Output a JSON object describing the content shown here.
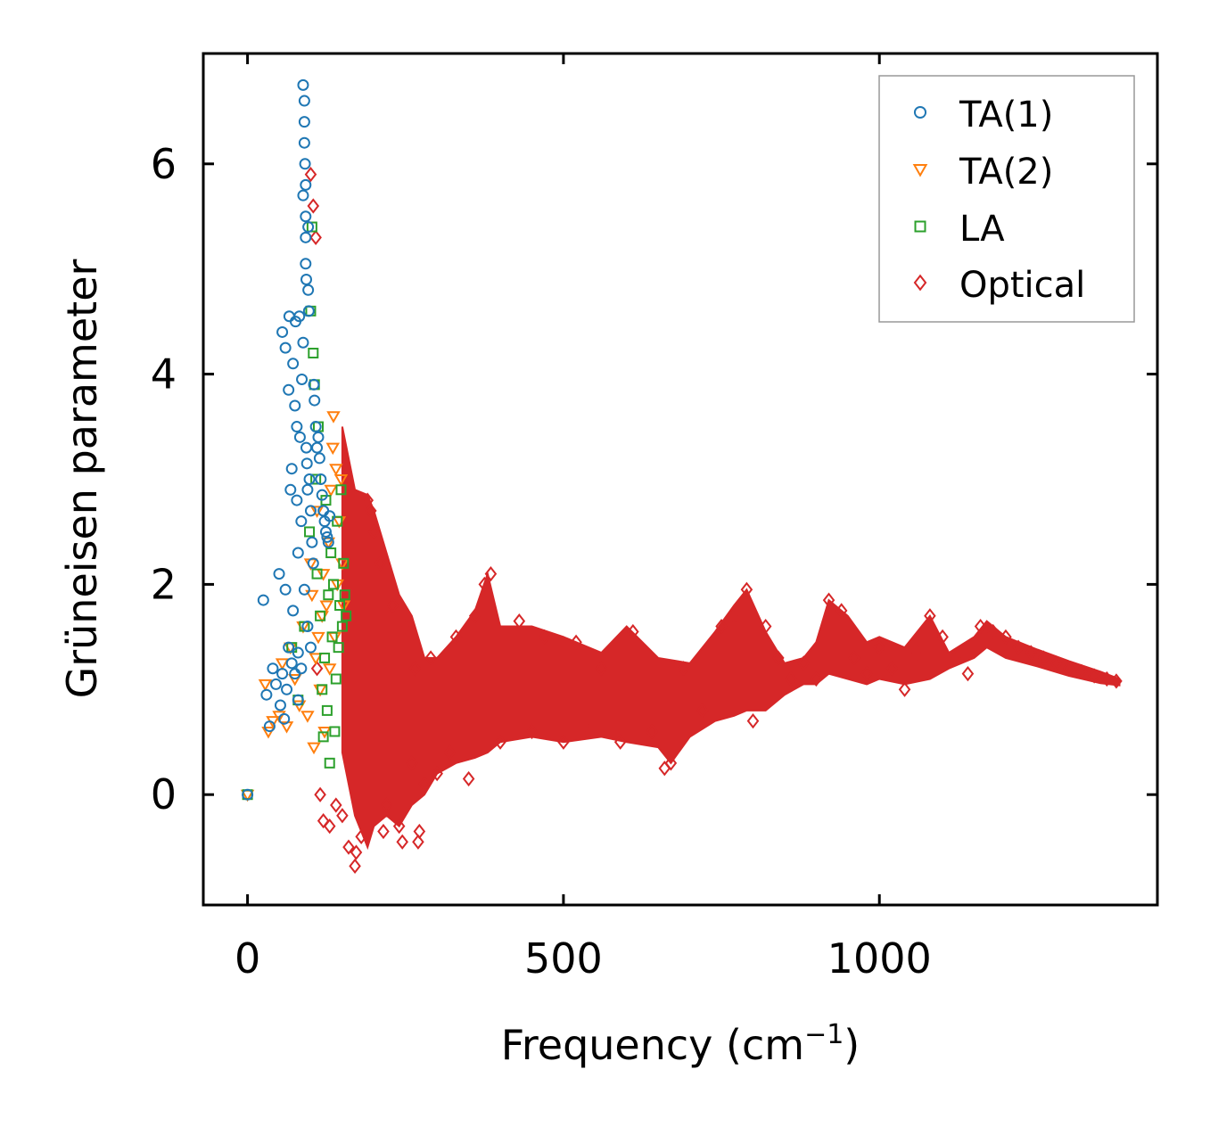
{
  "chart_data": {
    "type": "scatter",
    "title": "",
    "xlabel": "Frequency (cm",
    "xlabel_sup": "−1",
    "xlabel_close": ")",
    "ylabel": "Grüneisen parameter",
    "xlim": [
      -70,
      1440
    ],
    "ylim": [
      -1.05,
      7.05
    ],
    "xticks": [
      0,
      500,
      1000
    ],
    "yticks": [
      0,
      2,
      4,
      6
    ],
    "legend_position": "top-right",
    "series": [
      {
        "name": "TA(1)",
        "marker": "circle",
        "color": "#1f77b4",
        "points": [
          [
            0,
            0
          ],
          [
            25,
            1.85
          ],
          [
            30,
            0.95
          ],
          [
            35,
            0.65
          ],
          [
            40,
            1.2
          ],
          [
            45,
            1.05
          ],
          [
            50,
            2.1
          ],
          [
            52,
            0.85
          ],
          [
            55,
            1.15
          ],
          [
            55,
            4.4
          ],
          [
            58,
            0.72
          ],
          [
            60,
            1.95
          ],
          [
            60,
            4.25
          ],
          [
            62,
            1.0
          ],
          [
            65,
            1.4
          ],
          [
            65,
            3.85
          ],
          [
            66,
            4.55
          ],
          [
            68,
            2.9
          ],
          [
            70,
            1.25
          ],
          [
            70,
            3.1
          ],
          [
            72,
            4.1
          ],
          [
            72,
            1.75
          ],
          [
            75,
            1.15
          ],
          [
            75,
            3.7
          ],
          [
            76,
            4.5
          ],
          [
            78,
            2.8
          ],
          [
            78,
            3.5
          ],
          [
            80,
            0.9
          ],
          [
            80,
            1.35
          ],
          [
            80,
            2.3
          ],
          [
            82,
            4.55
          ],
          [
            83,
            3.4
          ],
          [
            85,
            2.6
          ],
          [
            85,
            1.2
          ],
          [
            86,
            3.95
          ],
          [
            88,
            5.7
          ],
          [
            88,
            4.3
          ],
          [
            88,
            6.75
          ],
          [
            90,
            6.6
          ],
          [
            90,
            6.4
          ],
          [
            90,
            6.2
          ],
          [
            90,
            1.95
          ],
          [
            91,
            6.0
          ],
          [
            92,
            5.8
          ],
          [
            92,
            5.5
          ],
          [
            92,
            5.3
          ],
          [
            92,
            5.05
          ],
          [
            93,
            4.9
          ],
          [
            93,
            3.3
          ],
          [
            94,
            3.15
          ],
          [
            95,
            2.9
          ],
          [
            95,
            1.6
          ],
          [
            96,
            5.4
          ],
          [
            96,
            4.8
          ],
          [
            97,
            4.6
          ],
          [
            98,
            3.0
          ],
          [
            100,
            2.7
          ],
          [
            100,
            1.4
          ],
          [
            102,
            2.4
          ],
          [
            104,
            2.2
          ],
          [
            105,
            3.9
          ],
          [
            106,
            3.75
          ],
          [
            108,
            3.5
          ],
          [
            110,
            3.3
          ],
          [
            112,
            3.4
          ],
          [
            114,
            3.2
          ],
          [
            116,
            3.0
          ],
          [
            118,
            2.85
          ],
          [
            120,
            2.7
          ],
          [
            122,
            2.6
          ],
          [
            124,
            2.5
          ],
          [
            126,
            2.45
          ],
          [
            128,
            2.4
          ],
          [
            130,
            2.65
          ]
        ]
      },
      {
        "name": "TA(2)",
        "marker": "triangle",
        "color": "#ff7f0e",
        "points": [
          [
            0,
            0
          ],
          [
            28,
            1.05
          ],
          [
            33,
            0.6
          ],
          [
            40,
            0.7
          ],
          [
            50,
            0.75
          ],
          [
            55,
            1.25
          ],
          [
            62,
            0.65
          ],
          [
            68,
            1.4
          ],
          [
            75,
            1.1
          ],
          [
            82,
            0.85
          ],
          [
            88,
            1.6
          ],
          [
            95,
            0.75
          ],
          [
            100,
            2.2
          ],
          [
            102,
            1.9
          ],
          [
            105,
            0.45
          ],
          [
            108,
            1.3
          ],
          [
            110,
            2.7
          ],
          [
            112,
            1.5
          ],
          [
            115,
            1.0
          ],
          [
            118,
            1.7
          ],
          [
            120,
            2.1
          ],
          [
            122,
            0.6
          ],
          [
            125,
            1.8
          ],
          [
            128,
            2.4
          ],
          [
            130,
            1.2
          ],
          [
            132,
            2.9
          ],
          [
            135,
            3.3
          ],
          [
            136,
            3.6
          ],
          [
            138,
            1.5
          ],
          [
            140,
            3.1
          ],
          [
            142,
            2.0
          ],
          [
            145,
            2.6
          ],
          [
            148,
            3.0
          ],
          [
            150,
            2.2
          ],
          [
            152,
            1.8
          ]
        ]
      },
      {
        "name": "LA",
        "marker": "square",
        "color": "#2ca02c",
        "points": [
          [
            0,
            0
          ],
          [
            70,
            1.4
          ],
          [
            80,
            0.9
          ],
          [
            90,
            1.6
          ],
          [
            98,
            2.5
          ],
          [
            100,
            4.6
          ],
          [
            102,
            5.4
          ],
          [
            104,
            4.2
          ],
          [
            106,
            3.9
          ],
          [
            108,
            3.0
          ],
          [
            110,
            2.1
          ],
          [
            112,
            3.5
          ],
          [
            115,
            1.7
          ],
          [
            118,
            1.0
          ],
          [
            120,
            0.55
          ],
          [
            122,
            1.3
          ],
          [
            124,
            2.8
          ],
          [
            126,
            0.8
          ],
          [
            128,
            1.9
          ],
          [
            130,
            0.3
          ],
          [
            132,
            2.3
          ],
          [
            134,
            1.5
          ],
          [
            136,
            2.0
          ],
          [
            138,
            0.6
          ],
          [
            140,
            1.1
          ],
          [
            142,
            2.6
          ],
          [
            144,
            1.4
          ],
          [
            146,
            1.8
          ],
          [
            148,
            2.9
          ],
          [
            150,
            1.6
          ],
          [
            152,
            2.2
          ],
          [
            154,
            1.9
          ],
          [
            156,
            1.7
          ]
        ]
      },
      {
        "name": "Optical",
        "marker": "diamond",
        "color": "#d62728",
        "points": [
          [
            100,
            5.9
          ],
          [
            104,
            5.6
          ],
          [
            108,
            5.3
          ],
          [
            110,
            1.2
          ],
          [
            115,
            0.0
          ],
          [
            120,
            -0.25
          ],
          [
            130,
            -0.3
          ],
          [
            140,
            -0.1
          ],
          [
            150,
            -0.2
          ],
          [
            160,
            -0.5
          ],
          [
            170,
            -0.68
          ],
          [
            172,
            -0.55
          ],
          [
            180,
            -0.4
          ],
          [
            190,
            2.8
          ],
          [
            195,
            2.7
          ],
          [
            200,
            2.5
          ],
          [
            210,
            2.2
          ],
          [
            215,
            -0.35
          ],
          [
            220,
            -0.1
          ],
          [
            230,
            1.8
          ],
          [
            240,
            -0.3
          ],
          [
            245,
            -0.45
          ],
          [
            250,
            1.6
          ],
          [
            260,
            0.3
          ],
          [
            265,
            1.2
          ],
          [
            270,
            -0.45
          ],
          [
            272,
            -0.35
          ],
          [
            280,
            0.1
          ],
          [
            290,
            1.3
          ],
          [
            300,
            0.2
          ],
          [
            320,
            0.4
          ],
          [
            330,
            1.5
          ],
          [
            350,
            0.15
          ],
          [
            360,
            1.7
          ],
          [
            375,
            2.0
          ],
          [
            385,
            2.1
          ],
          [
            400,
            0.5
          ],
          [
            430,
            1.65
          ],
          [
            450,
            0.6
          ],
          [
            470,
            1.5
          ],
          [
            500,
            0.5
          ],
          [
            520,
            1.45
          ],
          [
            540,
            0.6
          ],
          [
            560,
            1.2
          ],
          [
            590,
            0.5
          ],
          [
            610,
            1.55
          ],
          [
            640,
            0.6
          ],
          [
            660,
            0.25
          ],
          [
            670,
            0.3
          ],
          [
            690,
            1.2
          ],
          [
            720,
            0.8
          ],
          [
            750,
            1.6
          ],
          [
            770,
            1.7
          ],
          [
            790,
            1.95
          ],
          [
            800,
            0.7
          ],
          [
            820,
            1.6
          ],
          [
            840,
            1.3
          ],
          [
            860,
            1.1
          ],
          [
            880,
            1.25
          ],
          [
            900,
            1.1
          ],
          [
            920,
            1.85
          ],
          [
            940,
            1.75
          ],
          [
            960,
            1.3
          ],
          [
            980,
            1.15
          ],
          [
            1000,
            1.4
          ],
          [
            1020,
            1.2
          ],
          [
            1040,
            1.0
          ],
          [
            1060,
            1.35
          ],
          [
            1080,
            1.7
          ],
          [
            1100,
            1.5
          ],
          [
            1120,
            1.3
          ],
          [
            1140,
            1.15
          ],
          [
            1160,
            1.6
          ],
          [
            1180,
            1.55
          ],
          [
            1200,
            1.5
          ],
          [
            1220,
            1.4
          ],
          [
            1240,
            1.35
          ],
          [
            1260,
            1.3
          ],
          [
            1280,
            1.25
          ],
          [
            1300,
            1.2
          ],
          [
            1320,
            1.17
          ],
          [
            1340,
            1.13
          ],
          [
            1360,
            1.1
          ],
          [
            1375,
            1.08
          ]
        ],
        "band_upper": [
          [
            150,
            3.5
          ],
          [
            170,
            2.9
          ],
          [
            190,
            2.85
          ],
          [
            200,
            2.7
          ],
          [
            220,
            2.3
          ],
          [
            240,
            1.9
          ],
          [
            260,
            1.7
          ],
          [
            280,
            1.3
          ],
          [
            300,
            1.3
          ],
          [
            330,
            1.5
          ],
          [
            360,
            1.75
          ],
          [
            380,
            2.1
          ],
          [
            400,
            1.6
          ],
          [
            450,
            1.6
          ],
          [
            500,
            1.5
          ],
          [
            560,
            1.35
          ],
          [
            600,
            1.6
          ],
          [
            650,
            1.3
          ],
          [
            700,
            1.25
          ],
          [
            740,
            1.55
          ],
          [
            770,
            1.8
          ],
          [
            790,
            1.95
          ],
          [
            820,
            1.55
          ],
          [
            850,
            1.25
          ],
          [
            880,
            1.3
          ],
          [
            900,
            1.45
          ],
          [
            920,
            1.85
          ],
          [
            950,
            1.7
          ],
          [
            980,
            1.45
          ],
          [
            1000,
            1.5
          ],
          [
            1040,
            1.4
          ],
          [
            1080,
            1.7
          ],
          [
            1110,
            1.35
          ],
          [
            1150,
            1.5
          ],
          [
            1170,
            1.65
          ],
          [
            1200,
            1.5
          ],
          [
            1250,
            1.38
          ],
          [
            1300,
            1.27
          ],
          [
            1350,
            1.17
          ],
          [
            1380,
            1.1
          ]
        ],
        "band_lower": [
          [
            150,
            0.4
          ],
          [
            170,
            -0.2
          ],
          [
            190,
            -0.5
          ],
          [
            200,
            -0.3
          ],
          [
            220,
            -0.2
          ],
          [
            240,
            -0.3
          ],
          [
            260,
            -0.1
          ],
          [
            280,
            0.0
          ],
          [
            300,
            0.2
          ],
          [
            330,
            0.3
          ],
          [
            360,
            0.35
          ],
          [
            380,
            0.4
          ],
          [
            400,
            0.5
          ],
          [
            450,
            0.55
          ],
          [
            500,
            0.5
          ],
          [
            560,
            0.55
          ],
          [
            600,
            0.5
          ],
          [
            650,
            0.45
          ],
          [
            670,
            0.3
          ],
          [
            700,
            0.55
          ],
          [
            740,
            0.7
          ],
          [
            770,
            0.75
          ],
          [
            790,
            0.8
          ],
          [
            820,
            0.8
          ],
          [
            850,
            0.95
          ],
          [
            880,
            1.05
          ],
          [
            900,
            1.05
          ],
          [
            920,
            1.15
          ],
          [
            950,
            1.1
          ],
          [
            980,
            1.05
          ],
          [
            1000,
            1.1
          ],
          [
            1040,
            1.05
          ],
          [
            1080,
            1.1
          ],
          [
            1110,
            1.2
          ],
          [
            1150,
            1.3
          ],
          [
            1170,
            1.4
          ],
          [
            1200,
            1.3
          ],
          [
            1250,
            1.22
          ],
          [
            1300,
            1.13
          ],
          [
            1350,
            1.06
          ],
          [
            1380,
            1.04
          ]
        ]
      }
    ]
  }
}
